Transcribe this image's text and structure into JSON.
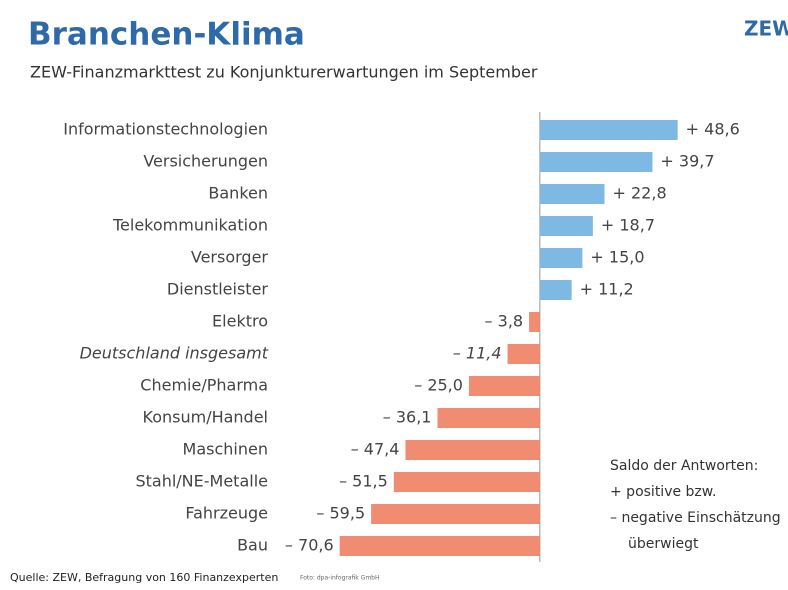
{
  "chart_data": {
    "type": "bar",
    "orientation": "horizontal",
    "title": "Branchen-Klima",
    "subtitle": "ZEW-Finanzmarkttest zu Konjunkturerwartungen im September",
    "logo": "ZEW",
    "categories": [
      "Informationstechnologien",
      "Versicherungen",
      "Banken",
      "Telekommunikation",
      "Versorger",
      "Dienstleister",
      "Elektro",
      "Deutschland insgesamt",
      "Chemie/Pharma",
      "Konsum/Handel",
      "Maschinen",
      "Stahl/NE-Metalle",
      "Fahrzeuge",
      "Bau"
    ],
    "values": [
      48.6,
      39.7,
      22.8,
      18.7,
      15.0,
      11.2,
      -3.8,
      -11.4,
      -25.0,
      -36.1,
      -47.4,
      -51.5,
      -59.5,
      -70.6
    ],
    "value_labels": [
      "+ 48,6",
      "+ 39,7",
      "+ 22,8",
      "+ 18,7",
      "+ 15,0",
      "+ 11,2",
      "– 3,8",
      "– 11,4",
      "– 25,0",
      "– 36,1",
      "– 47,4",
      "– 51,5",
      "– 59,5",
      "– 70,6"
    ],
    "positive_color": "#7db9e2",
    "negative_color": "#f08c72",
    "xlim": [
      -80,
      60
    ],
    "annotations": [
      "Saldo der Antworten:",
      "+ positive bzw.",
      "– negative Einschätzung",
      "überwiegt"
    ],
    "source": "Quelle: ZEW, Befragung von 160 Finanzexperten",
    "credit": "Foto: dpa-infografik GmbH"
  }
}
